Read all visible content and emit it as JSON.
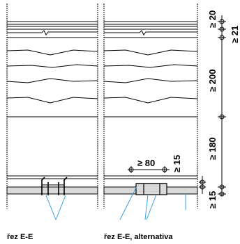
{
  "dimensions": {
    "d20": "≥ 20",
    "d21": "≥ 21",
    "d200": "≥ 200",
    "d180": "≥ 180",
    "d15_right": "≥ 15",
    "d80": "≥ 80",
    "d15_mid": "≥ 15",
    "d15_bottom": "≥ 15"
  },
  "captions": {
    "left": "řez E-E",
    "right": "řez E-E, alternativa"
  },
  "colors": {
    "line": "#000000",
    "slab_fill": "#d9d9d9",
    "leader": "#3aa0e0"
  }
}
